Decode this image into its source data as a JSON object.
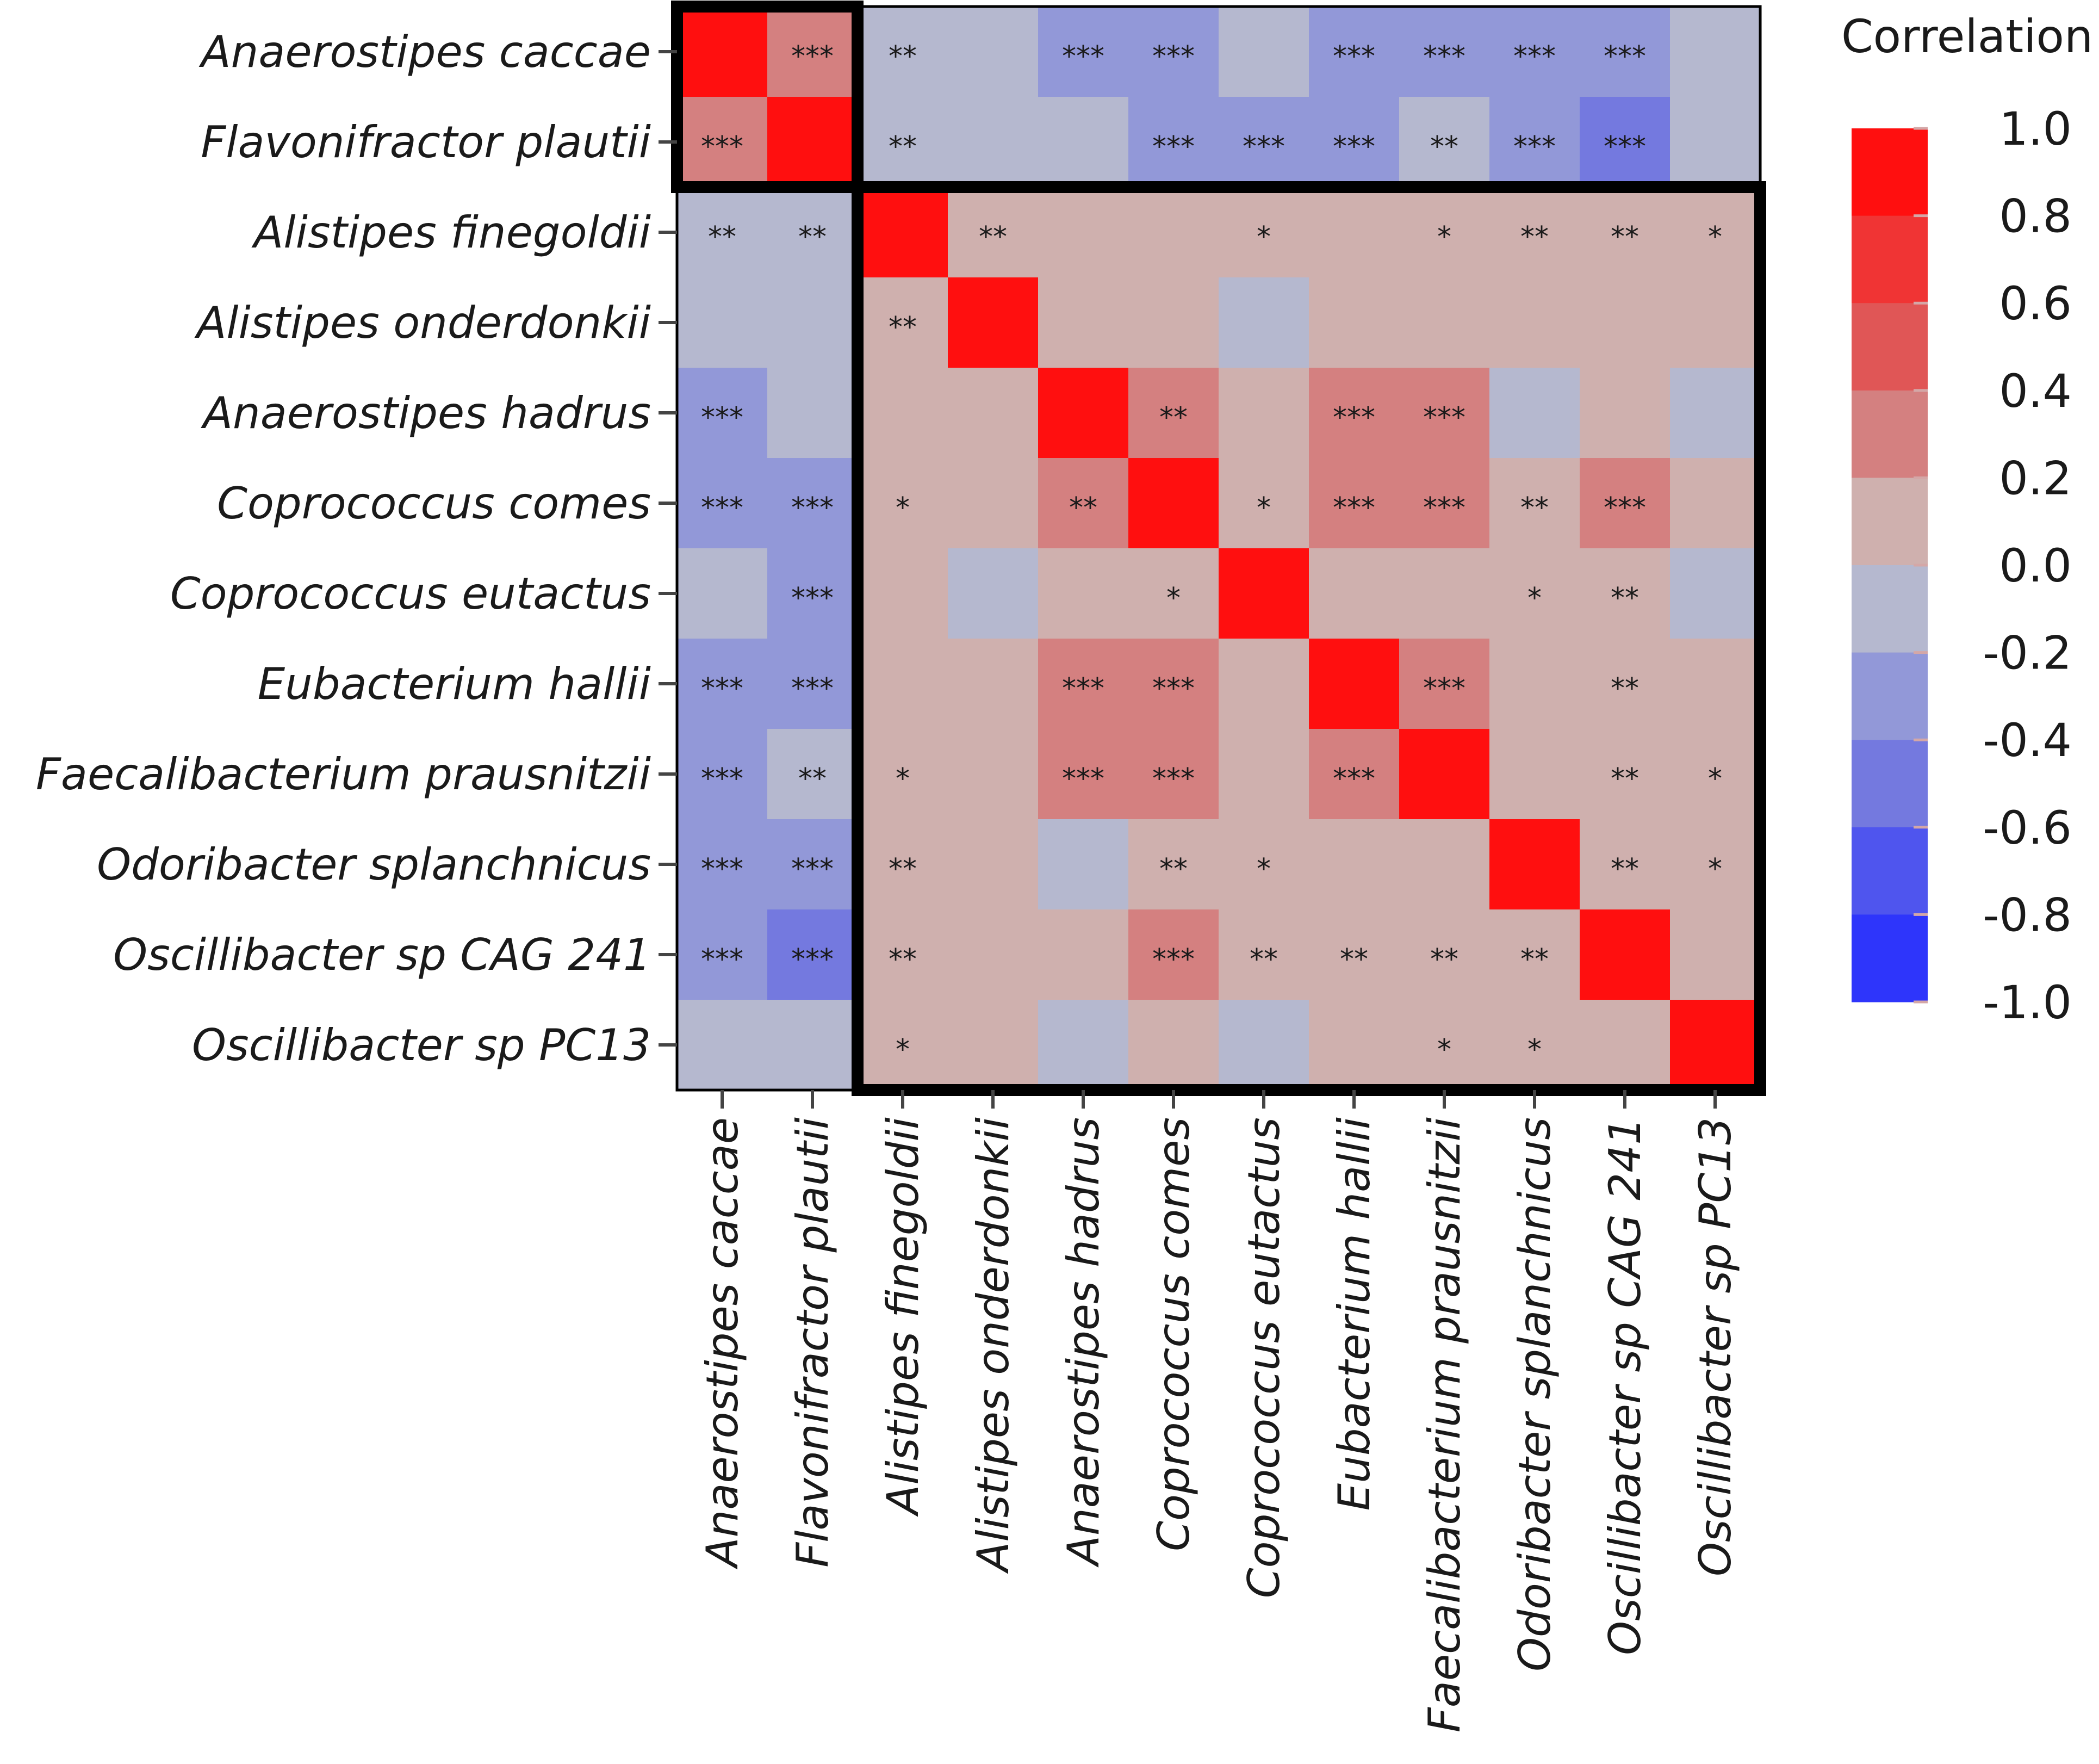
{
  "chart_data": {
    "type": "heatmap",
    "title": "",
    "xlabel": "",
    "ylabel": "",
    "rows": [
      "Anaerostipes caccae",
      "Flavonifractor plautii",
      "Alistipes finegoldii",
      "Alistipes onderdonkii",
      "Anaerostipes hadrus",
      "Coprococcus comes",
      "Coprococcus eutactus",
      "Eubacterium hallii",
      "Faecalibacterium prausnitzii",
      "Odoribacter splanchnicus",
      "Oscillibacter sp CAG 241",
      "Oscillibacter sp PC13"
    ],
    "columns": [
      "Anaerostipes caccae",
      "Flavonifractor plautii",
      "Alistipes finegoldii",
      "Alistipes onderdonkii",
      "Anaerostipes hadrus",
      "Coprococcus comes",
      "Coprococcus eutactus",
      "Eubacterium hallii",
      "Faecalibacterium prausnitzii",
      "Odoribacter splanchnicus",
      "Oscillibacter sp CAG 241",
      "Oscillibacter sp PC13"
    ],
    "values": [
      [
        1.0,
        0.3,
        -0.1,
        -0.1,
        -0.3,
        -0.3,
        -0.1,
        -0.3,
        -0.3,
        -0.3,
        -0.3,
        -0.1
      ],
      [
        0.3,
        1.0,
        -0.1,
        -0.1,
        -0.1,
        -0.3,
        -0.3,
        -0.3,
        -0.1,
        -0.3,
        -0.5,
        -0.1
      ],
      [
        -0.1,
        -0.1,
        1.0,
        0.1,
        0.1,
        0.1,
        0.1,
        0.1,
        0.1,
        0.1,
        0.1,
        0.1
      ],
      [
        -0.1,
        -0.1,
        0.1,
        1.0,
        0.1,
        0.1,
        -0.1,
        0.1,
        0.1,
        0.1,
        0.1,
        0.1
      ],
      [
        -0.3,
        -0.1,
        0.1,
        0.1,
        1.0,
        0.3,
        0.1,
        0.3,
        0.3,
        -0.1,
        0.1,
        -0.1
      ],
      [
        -0.3,
        -0.3,
        0.1,
        0.1,
        0.3,
        1.0,
        0.1,
        0.3,
        0.3,
        0.1,
        0.3,
        0.1
      ],
      [
        -0.1,
        -0.3,
        0.1,
        -0.1,
        0.1,
        0.1,
        1.0,
        0.1,
        0.1,
        0.1,
        0.1,
        -0.1
      ],
      [
        -0.3,
        -0.3,
        0.1,
        0.1,
        0.3,
        0.3,
        0.1,
        1.0,
        0.3,
        0.1,
        0.1,
        0.1
      ],
      [
        -0.3,
        -0.1,
        0.1,
        0.1,
        0.3,
        0.3,
        0.1,
        0.3,
        1.0,
        0.1,
        0.1,
        0.1
      ],
      [
        -0.3,
        -0.3,
        0.1,
        0.1,
        -0.1,
        0.1,
        0.1,
        0.1,
        0.1,
        1.0,
        0.1,
        0.1
      ],
      [
        -0.3,
        -0.5,
        0.1,
        0.1,
        0.1,
        0.3,
        0.1,
        0.1,
        0.1,
        0.1,
        1.0,
        0.1
      ],
      [
        -0.1,
        -0.1,
        0.1,
        0.1,
        -0.1,
        0.1,
        -0.1,
        0.1,
        0.1,
        0.1,
        0.1,
        1.0
      ]
    ],
    "significance": [
      [
        "",
        "***",
        "**",
        "",
        "***",
        "***",
        "",
        "***",
        "***",
        "***",
        "***",
        ""
      ],
      [
        "***",
        "",
        "**",
        "",
        "",
        "***",
        "***",
        "***",
        "**",
        "***",
        "***",
        ""
      ],
      [
        "**",
        "**",
        "",
        "**",
        "",
        "",
        "*",
        "",
        "*",
        "**",
        "**",
        "*"
      ],
      [
        "",
        "",
        "**",
        "",
        "",
        "",
        "",
        "",
        "",
        "",
        "",
        ""
      ],
      [
        "***",
        "",
        "",
        "",
        "",
        "**",
        "",
        "***",
        "***",
        "",
        "",
        ""
      ],
      [
        "***",
        "***",
        "*",
        "",
        "**",
        "",
        "*",
        "***",
        "***",
        "**",
        "***",
        ""
      ],
      [
        "",
        "***",
        "",
        "",
        "",
        "*",
        "",
        "",
        "",
        "*",
        "**",
        ""
      ],
      [
        "***",
        "***",
        "",
        "",
        "***",
        "***",
        "",
        "",
        "***",
        "",
        "**",
        ""
      ],
      [
        "***",
        "**",
        "*",
        "",
        "***",
        "***",
        "",
        "***",
        "",
        "",
        "**",
        "*"
      ],
      [
        "***",
        "***",
        "**",
        "",
        "",
        "**",
        "*",
        "",
        "",
        "",
        "**",
        "*"
      ],
      [
        "***",
        "***",
        "**",
        "",
        "",
        "***",
        "**",
        "**",
        "**",
        "**",
        "",
        ""
      ],
      [
        "",
        "",
        "*",
        "",
        "",
        "",
        "",
        "",
        "*",
        "*",
        "",
        ""
      ]
    ],
    "clusters": [
      {
        "start": 0,
        "end": 1
      },
      {
        "start": 2,
        "end": 11
      }
    ],
    "color_scale": {
      "title": "Correlation",
      "min": -1.0,
      "max": 1.0,
      "step": 0.2,
      "tick_labels": [
        "1.0",
        "0.8",
        "0.6",
        "0.4",
        "0.2",
        "0.0",
        "-0.2",
        "-0.4",
        "-0.6",
        "-0.8",
        "-1.0"
      ],
      "colors_top_to_bottom": [
        "#ff0f0f",
        "#f03434",
        "#e05656",
        "#d48080",
        "#cfb0ae",
        "#b5b8cf",
        "#9298d8",
        "#7479df",
        "#4f55ee",
        "#2e35fb"
      ]
    },
    "legend": "right"
  }
}
